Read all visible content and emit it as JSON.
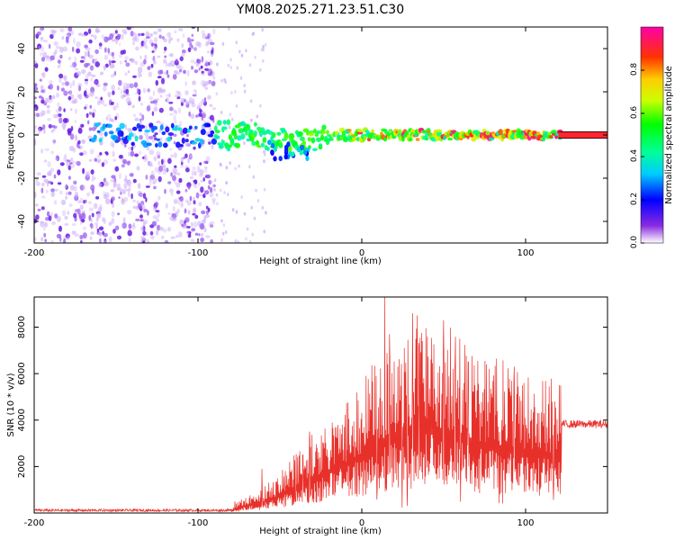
{
  "figure": {
    "title": "YM08.2025.271.23.51.C30"
  },
  "chart_data": [
    {
      "type": "heatmap",
      "name": "spectrogram",
      "xlabel": "Height of straight line (km)",
      "ylabel": "Frequency (Hz)",
      "xlim": [
        -200,
        150
      ],
      "ylim": [
        -50,
        50
      ],
      "xticks": [
        -200,
        -100,
        0,
        100
      ],
      "yticks": [
        -40,
        -20,
        0,
        20,
        40
      ],
      "colorbar": {
        "label": "Normalized spectral amplitude",
        "ticks": [
          "0.0",
          "0.2",
          "0.4",
          "0.6",
          "0.8"
        ],
        "range": [
          0,
          1
        ],
        "colormap": "rainbow"
      },
      "reference_lines_hz": [
        -1.5,
        1.5
      ],
      "noise_region_km": [
        -200,
        -90
      ],
      "signal_center_hz": 0
    },
    {
      "type": "line",
      "name": "snr",
      "xlabel": "Height of straight line (km)",
      "ylabel": "SNR (10 * v/v)",
      "xlim": [
        -200,
        150
      ],
      "ylim": [
        0,
        9300
      ],
      "xticks": [
        -200,
        -100,
        0,
        100
      ],
      "yticks": [
        2000,
        4000,
        6000,
        8000
      ],
      "series_color": "#e8302a",
      "envelope_km_snr": [
        [
          -200,
          100
        ],
        [
          -150,
          100
        ],
        [
          -100,
          100
        ],
        [
          -80,
          220
        ],
        [
          -70,
          600
        ],
        [
          -60,
          900
        ],
        [
          -50,
          1400
        ],
        [
          -40,
          2200
        ],
        [
          -30,
          2800
        ],
        [
          -20,
          3400
        ],
        [
          -10,
          4000
        ],
        [
          0,
          4700
        ],
        [
          10,
          5500
        ],
        [
          20,
          6300
        ],
        [
          30,
          6800
        ],
        [
          40,
          6900
        ],
        [
          50,
          6600
        ],
        [
          60,
          6200
        ],
        [
          70,
          5700
        ],
        [
          80,
          5400
        ],
        [
          90,
          5200
        ],
        [
          100,
          5000
        ],
        [
          110,
          4900
        ],
        [
          120,
          4600
        ],
        [
          130,
          3900
        ],
        [
          150,
          3850
        ]
      ],
      "peaks_km_snr": [
        [
          14,
          9300
        ],
        [
          17,
          7700
        ],
        [
          22,
          6300
        ],
        [
          31,
          8600
        ],
        [
          35,
          7200
        ],
        [
          40,
          7600
        ],
        [
          50,
          8300
        ],
        [
          57,
          6600
        ],
        [
          65,
          6500
        ],
        [
          93,
          6300
        ],
        [
          99,
          5600
        ],
        [
          -61,
          1900
        ],
        [
          -44,
          2200
        ],
        [
          -36,
          2500
        ],
        [
          -32,
          3500
        ]
      ]
    }
  ]
}
